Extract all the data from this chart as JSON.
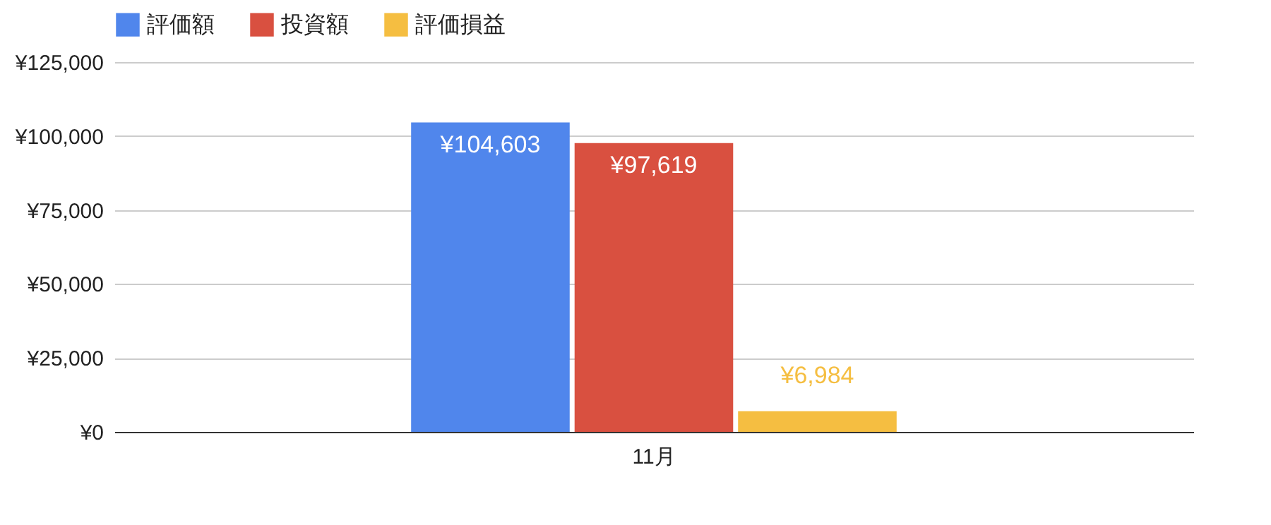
{
  "chart_data": {
    "type": "bar",
    "categories": [
      "11月"
    ],
    "series": [
      {
        "name": "評価額",
        "color": "#5086ec",
        "values": [
          104603
        ],
        "value_labels": [
          "¥104,603"
        ]
      },
      {
        "name": "投資額",
        "color": "#d95040",
        "values": [
          97619
        ],
        "value_labels": [
          "¥97,619"
        ]
      },
      {
        "name": "評価損益",
        "color": "#f5be41",
        "values": [
          6984
        ],
        "value_labels": [
          "¥6,984"
        ]
      }
    ],
    "ylim": [
      0,
      125000
    ],
    "yticks": [
      {
        "value": 0,
        "label": "¥0"
      },
      {
        "value": 25000,
        "label": "¥25,000"
      },
      {
        "value": 50000,
        "label": "¥50,000"
      },
      {
        "value": 75000,
        "label": "¥75,000"
      },
      {
        "value": 100000,
        "label": "¥100,000"
      },
      {
        "value": 125000,
        "label": "¥125,000"
      }
    ],
    "grid": "y",
    "legend": "top"
  }
}
